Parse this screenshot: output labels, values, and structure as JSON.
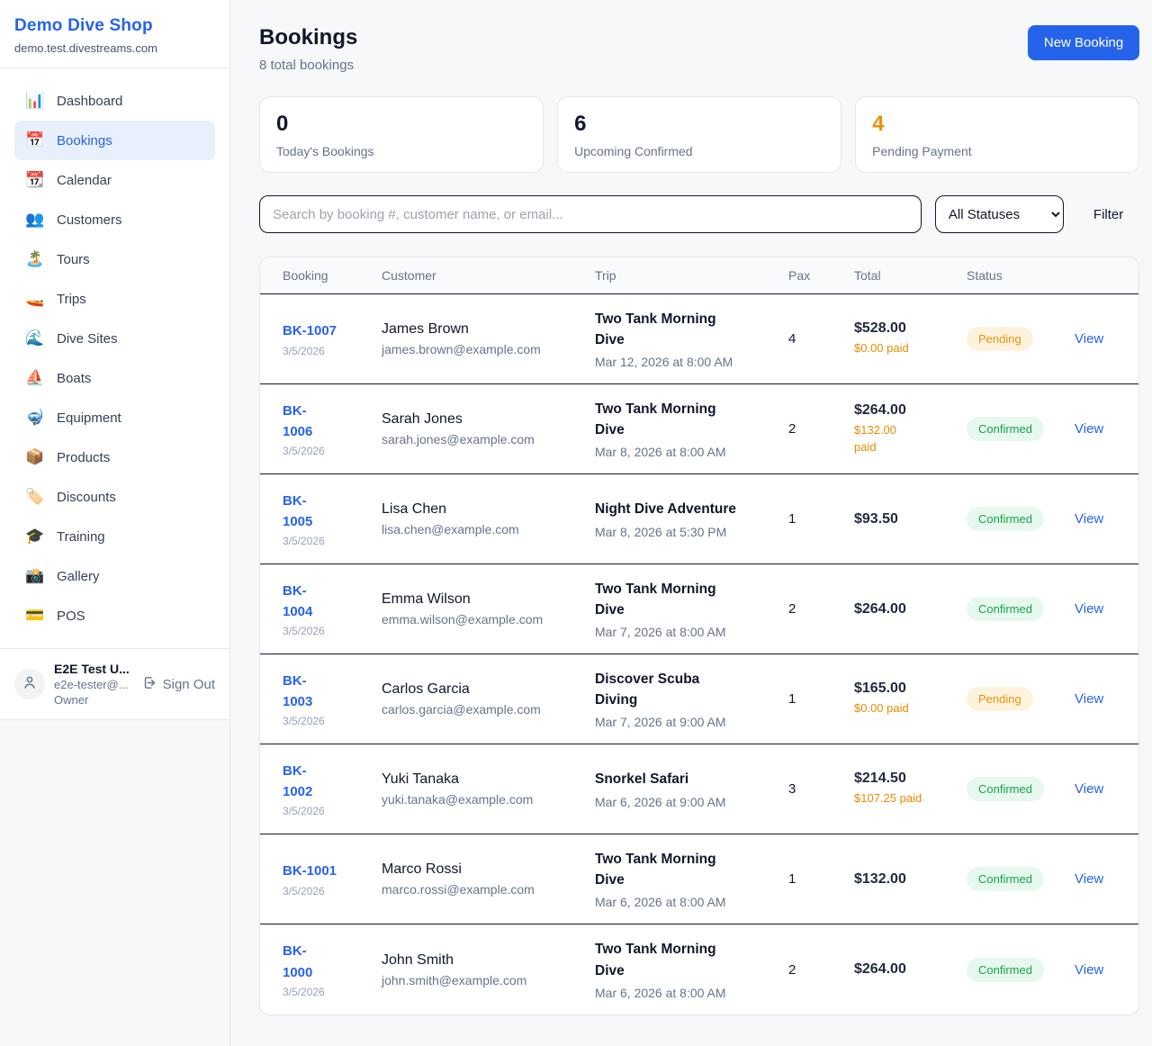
{
  "sidebar": {
    "brand": {
      "name": "Demo Dive Shop",
      "domain": "demo.test.divestreams.com"
    },
    "items": [
      {
        "label": "Dashboard",
        "icon": "📊",
        "active": false
      },
      {
        "label": "Bookings",
        "icon": "📅",
        "active": true
      },
      {
        "label": "Calendar",
        "icon": "📆",
        "active": false
      },
      {
        "label": "Customers",
        "icon": "👥",
        "active": false
      },
      {
        "label": "Tours",
        "icon": "🏝️",
        "active": false
      },
      {
        "label": "Trips",
        "icon": "🚤",
        "active": false
      },
      {
        "label": "Dive Sites",
        "icon": "🌊",
        "active": false
      },
      {
        "label": "Boats",
        "icon": "⛵",
        "active": false
      },
      {
        "label": "Equipment",
        "icon": "🤿",
        "active": false
      },
      {
        "label": "Products",
        "icon": "📦",
        "active": false
      },
      {
        "label": "Discounts",
        "icon": "🏷️",
        "active": false
      },
      {
        "label": "Training",
        "icon": "🎓",
        "active": false
      },
      {
        "label": "Gallery",
        "icon": "📸",
        "active": false
      },
      {
        "label": "POS",
        "icon": "💳",
        "active": false
      }
    ],
    "user": {
      "name": "E2E Test U...",
      "email": "e2e-tester@...",
      "role": "Owner",
      "sign_out_label": "Sign Out"
    }
  },
  "header": {
    "title": "Bookings",
    "subtitle": "8 total bookings",
    "new_booking_label": "New Booking"
  },
  "stats": [
    {
      "value": "0",
      "label": "Today's Bookings",
      "value_color": "#0f172a"
    },
    {
      "value": "6",
      "label": "Upcoming Confirmed",
      "value_color": "#0f172a"
    },
    {
      "value": "4",
      "label": "Pending Payment",
      "value_color": "#e8930c"
    }
  ],
  "filters": {
    "search_placeholder": "Search by booking #, customer name, or email...",
    "status_selected": "All Statuses",
    "filter_label": "Filter"
  },
  "table": {
    "columns": [
      "Booking",
      "Customer",
      "Trip",
      "Pax",
      "Total",
      "Status"
    ],
    "view_label": "View",
    "rows": [
      {
        "id": "BK-1007",
        "date": "3/5/2026",
        "customer": "James Brown",
        "email": "james.brown@example.com",
        "trip": "Two Tank Morning\nDive",
        "trip_datetime": "Mar 12, 2026 at 8:00 AM",
        "pax": "4",
        "total": "$528.00",
        "paid": "$0.00 paid",
        "status": "Pending"
      },
      {
        "id": "BK-\n1006",
        "date": "3/5/2026",
        "customer": "Sarah Jones",
        "email": "sarah.jones@example.com",
        "trip": "Two Tank Morning\nDive",
        "trip_datetime": "Mar 8, 2026 at 8:00 AM",
        "pax": "2",
        "total": "$264.00",
        "paid": "$132.00\npaid",
        "status": "Confirmed"
      },
      {
        "id": "BK-\n1005",
        "date": "3/5/2026",
        "customer": "Lisa Chen",
        "email": "lisa.chen@example.com",
        "trip": "Night Dive Adventure",
        "trip_datetime": "Mar 8, 2026 at 5:30 PM",
        "pax": "1",
        "total": "$93.50",
        "paid": "",
        "status": "Confirmed"
      },
      {
        "id": "BK-\n1004",
        "date": "3/5/2026",
        "customer": "Emma Wilson",
        "email": "emma.wilson@example.com",
        "trip": "Two Tank Morning\nDive",
        "trip_datetime": "Mar 7, 2026 at 8:00 AM",
        "pax": "2",
        "total": "$264.00",
        "paid": "",
        "status": "Confirmed"
      },
      {
        "id": "BK-\n1003",
        "date": "3/5/2026",
        "customer": "Carlos Garcia",
        "email": "carlos.garcia@example.com",
        "trip": "Discover Scuba\nDiving",
        "trip_datetime": "Mar 7, 2026 at 9:00 AM",
        "pax": "1",
        "total": "$165.00",
        "paid": "$0.00 paid",
        "status": "Pending"
      },
      {
        "id": "BK-\n1002",
        "date": "3/5/2026",
        "customer": "Yuki Tanaka",
        "email": "yuki.tanaka@example.com",
        "trip": "Snorkel Safari",
        "trip_datetime": "Mar 6, 2026 at 9:00 AM",
        "pax": "3",
        "total": "$214.50",
        "paid": "$107.25 paid",
        "status": "Confirmed"
      },
      {
        "id": "BK-1001",
        "date": "3/5/2026",
        "customer": "Marco Rossi",
        "email": "marco.rossi@example.com",
        "trip": "Two Tank Morning\nDive",
        "trip_datetime": "Mar 6, 2026 at 8:00 AM",
        "pax": "1",
        "total": "$132.00",
        "paid": "",
        "status": "Confirmed"
      },
      {
        "id": "BK-\n1000",
        "date": "3/5/2026",
        "customer": "John Smith",
        "email": "john.smith@example.com",
        "trip": "Two Tank Morning\nDive",
        "trip_datetime": "Mar 6, 2026 at 8:00 AM",
        "pax": "2",
        "total": "$264.00",
        "paid": "",
        "status": "Confirmed"
      }
    ]
  },
  "colors": {
    "accent": "#2563eb",
    "pending_text": "#e8930c",
    "pending_bg": "#fdf3dd",
    "confirmed_text": "#16a34a",
    "confirmed_bg": "#e7f8ee",
    "paid_amount": "#ea8a00"
  }
}
